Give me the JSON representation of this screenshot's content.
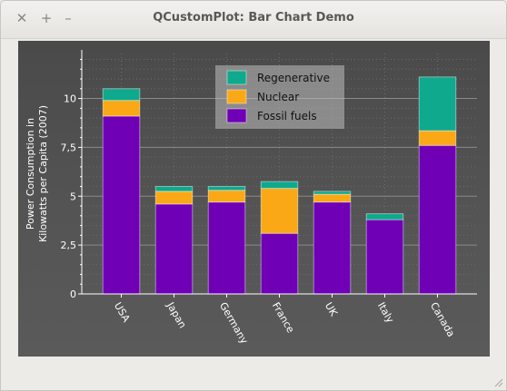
{
  "window": {
    "title": "QCustomPlot: Bar Chart Demo",
    "close_glyph": "✕",
    "maximize_glyph": "+",
    "minimize_glyph": "–"
  },
  "chart_data": {
    "type": "bar",
    "stacked": true,
    "categories": [
      "USA",
      "Japan",
      "Germany",
      "France",
      "UK",
      "Italy",
      "Canada"
    ],
    "series": [
      {
        "name": "Fossil fuels",
        "color": "#6f00b6",
        "values": [
          9.1,
          4.6,
          4.7,
          3.1,
          4.7,
          3.8,
          7.6
        ]
      },
      {
        "name": "Nuclear",
        "color": "#fba817",
        "values": [
          0.8,
          0.65,
          0.6,
          2.3,
          0.4,
          0.0,
          0.75
        ]
      },
      {
        "name": "Regenerative",
        "color": "#0fa98d",
        "values": [
          0.6,
          0.25,
          0.2,
          0.35,
          0.15,
          0.3,
          2.75
        ]
      }
    ],
    "legend_order": [
      "Regenerative",
      "Nuclear",
      "Fossil fuels"
    ],
    "legend_position": "top-center",
    "title": "",
    "xlabel": "",
    "ylabel": "Power Consumption in\nKilowatts per Capita (2007)",
    "ylabel_lines": [
      "Power Consumption in",
      "Kilowatts per Capita (2007)"
    ],
    "ylim": [
      0,
      12.3
    ],
    "yticks": [
      0,
      2.5,
      5,
      7.5,
      10
    ],
    "ytick_labels": [
      "0",
      "2,5",
      "5",
      "7,5",
      "10"
    ],
    "grid": true,
    "background": "#505050"
  }
}
